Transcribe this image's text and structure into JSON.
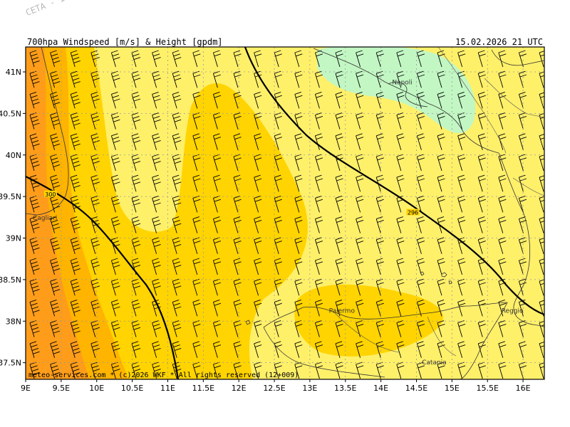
{
  "header": {
    "title": "700hpa_Windspeed_[m/s]_&_Height_[gpdm]",
    "datetime": "15.02.2026 21 UTC",
    "watermark": "CETA - Inst."
  },
  "footer": {
    "copyright": "meteo-services.com * (c)2026 WKF * All rights reserved (12+009)"
  },
  "axes": {
    "lon_labels": [
      "9E",
      "9.5E",
      "10E",
      "10.5E",
      "11E",
      "11.5E",
      "12E",
      "12.5E",
      "13E",
      "13.5E",
      "14E",
      "14.5E",
      "15E",
      "15.5E",
      "16E"
    ],
    "lat_labels": [
      "41N",
      "40.5N",
      "40N",
      "39.5N",
      "39N",
      "38.5N",
      "38N",
      "37.5N"
    ]
  },
  "cities": [
    {
      "name": "Napoli",
      "lon": 14.3,
      "lat": 40.85
    },
    {
      "name": "Cagliari",
      "lon": 9.1,
      "lat": 39.22
    },
    {
      "name": "Palermo",
      "lon": 13.45,
      "lat": 38.1
    },
    {
      "name": "Reggio",
      "lon": 15.85,
      "lat": 38.1
    },
    {
      "name": "Catania",
      "lon": 14.75,
      "lat": 37.48
    }
  ],
  "contours": [
    {
      "label": "300",
      "label_lon": 9.35,
      "label_lat": 39.52
    },
    {
      "label": "296",
      "label_lon": 14.45,
      "label_lat": 39.3
    }
  ],
  "colors": {
    "background_low": "#fff06a",
    "band_mid": "#ffd400",
    "band_high": "#ffb400",
    "band_max": "#ff9d1a",
    "calm": "#c2f7c3"
  }
}
